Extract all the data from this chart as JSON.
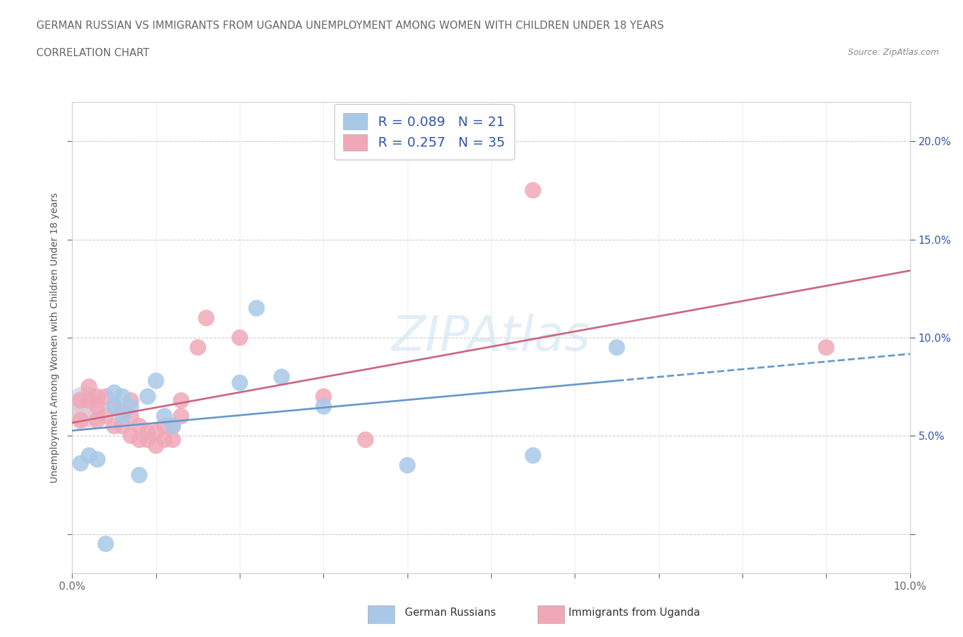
{
  "title_line1": "GERMAN RUSSIAN VS IMMIGRANTS FROM UGANDA UNEMPLOYMENT AMONG WOMEN WITH CHILDREN UNDER 18 YEARS",
  "title_line2": "CORRELATION CHART",
  "source": "Source: ZipAtlas.com",
  "ylabel": "Unemployment Among Women with Children Under 18 years",
  "xlim": [
    0.0,
    0.1
  ],
  "ylim": [
    -0.02,
    0.22
  ],
  "background_color": "#ffffff",
  "plot_bg_color": "#ffffff",
  "grid_color": "#cccccc",
  "german_russian_color": "#a8c8e8",
  "uganda_color": "#f0a8b8",
  "german_russian_line_color": "#6699cc",
  "uganda_line_color": "#cc6680",
  "R_german": 0.089,
  "N_german": 21,
  "R_uganda": 0.257,
  "N_uganda": 35,
  "legend_text_color": "#3355aa",
  "watermark_color": "#d0e4f0",
  "german_russian_x": [
    0.001,
    0.002,
    0.003,
    0.004,
    0.005,
    0.005,
    0.006,
    0.006,
    0.007,
    0.008,
    0.009,
    0.01,
    0.011,
    0.012,
    0.02,
    0.022,
    0.025,
    0.03,
    0.04,
    0.055,
    0.065
  ],
  "german_russian_y": [
    0.036,
    0.04,
    0.038,
    -0.005,
    0.065,
    0.072,
    0.06,
    0.07,
    0.065,
    0.03,
    0.07,
    0.078,
    0.06,
    0.055,
    0.077,
    0.115,
    0.08,
    0.065,
    0.035,
    0.04,
    0.095
  ],
  "uganda_x": [
    0.001,
    0.001,
    0.002,
    0.002,
    0.003,
    0.003,
    0.003,
    0.004,
    0.004,
    0.005,
    0.005,
    0.006,
    0.006,
    0.007,
    0.007,
    0.007,
    0.008,
    0.008,
    0.009,
    0.009,
    0.01,
    0.01,
    0.011,
    0.011,
    0.012,
    0.012,
    0.013,
    0.013,
    0.015,
    0.016,
    0.02,
    0.03,
    0.035,
    0.055,
    0.09
  ],
  "uganda_y": [
    0.058,
    0.068,
    0.068,
    0.075,
    0.058,
    0.065,
    0.07,
    0.06,
    0.07,
    0.055,
    0.065,
    0.055,
    0.062,
    0.05,
    0.06,
    0.068,
    0.048,
    0.055,
    0.048,
    0.052,
    0.045,
    0.052,
    0.048,
    0.055,
    0.048,
    0.055,
    0.06,
    0.068,
    0.095,
    0.11,
    0.1,
    0.07,
    0.048,
    0.175,
    0.095
  ]
}
